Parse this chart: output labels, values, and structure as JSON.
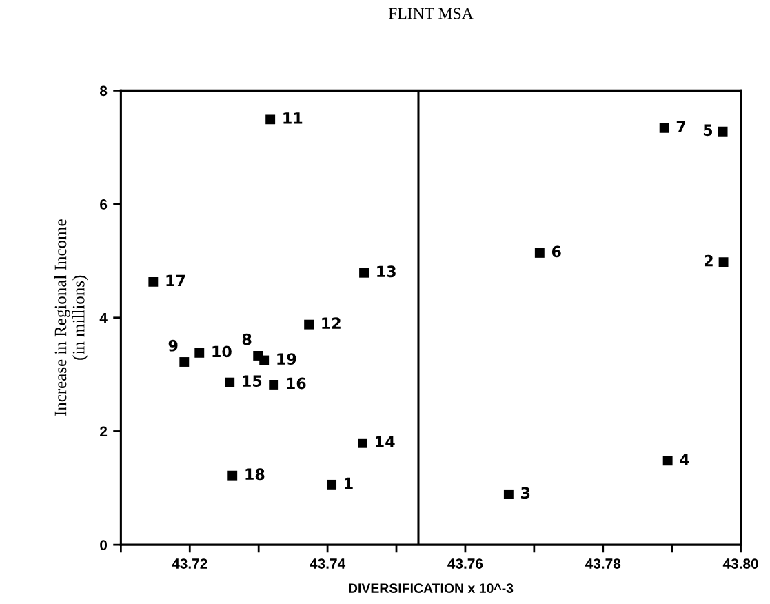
{
  "chart_data": {
    "type": "scatter",
    "title": "FLINT MSA",
    "xlabel": "DIVERSIFICATION x 10^-3",
    "ylabel": "Increase in Regional Income\n(in millions)",
    "marker": "square",
    "grid": false,
    "xlim": [
      43.71,
      43.8
    ],
    "ylim": [
      0,
      8
    ],
    "xticks": [
      {
        "value": 43.71,
        "label": null
      },
      43.72,
      {
        "value": 43.73,
        "label": null
      },
      43.74,
      {
        "value": 43.75,
        "label": null
      },
      43.76,
      {
        "value": 43.77,
        "label": null
      },
      43.78,
      {
        "value": 43.79,
        "label": null
      },
      {
        "value": 43.8,
        "label": "43.80"
      }
    ],
    "yticks": [
      0,
      2,
      4,
      6,
      8
    ],
    "ref_lines": [
      {
        "axis": "x",
        "value": 43.7532,
        "color": "#000000"
      }
    ],
    "series": [
      {
        "color": "#000000",
        "x": [
          43.7406,
          43.7975,
          43.7663,
          43.7894,
          43.7974,
          43.7708,
          43.7889,
          43.7299,
          43.7192,
          43.7214,
          43.7317,
          43.7373,
          43.7453,
          43.7451,
          43.7258,
          43.7322,
          43.7147,
          43.7262,
          43.7308
        ],
        "values": [
          1.06,
          4.98,
          0.89,
          1.48,
          7.28,
          5.14,
          7.34,
          3.33,
          3.22,
          3.38,
          7.49,
          3.88,
          4.79,
          1.79,
          2.86,
          2.82,
          4.63,
          1.22,
          3.25
        ]
      }
    ],
    "annotations": [
      {
        "text": "1",
        "x": 43.7406,
        "y": 1.06
      },
      {
        "text": "2",
        "x": 43.7975,
        "y": 4.98
      },
      {
        "text": "3",
        "x": 43.7663,
        "y": 0.89
      },
      {
        "text": "4",
        "x": 43.7894,
        "y": 1.48
      },
      {
        "text": "5",
        "x": 43.7974,
        "y": 7.28
      },
      {
        "text": "6",
        "x": 43.7708,
        "y": 5.14
      },
      {
        "text": "7",
        "x": 43.7889,
        "y": 7.34
      },
      {
        "text": "8",
        "x": 43.7299,
        "y": 3.33
      },
      {
        "text": "9",
        "x": 43.7192,
        "y": 3.22
      },
      {
        "text": "10",
        "x": 43.7214,
        "y": 3.38
      },
      {
        "text": "11",
        "x": 43.7317,
        "y": 7.49
      },
      {
        "text": "12",
        "x": 43.7373,
        "y": 3.88
      },
      {
        "text": "13",
        "x": 43.7453,
        "y": 4.79
      },
      {
        "text": "14",
        "x": 43.7451,
        "y": 1.79
      },
      {
        "text": "15",
        "x": 43.7258,
        "y": 2.86
      },
      {
        "text": "16",
        "x": 43.7322,
        "y": 2.82
      },
      {
        "text": "17",
        "x": 43.7147,
        "y": 4.63
      },
      {
        "text": "18",
        "x": 43.7262,
        "y": 1.22
      },
      {
        "text": "19",
        "x": 43.7308,
        "y": 3.25
      }
    ]
  }
}
